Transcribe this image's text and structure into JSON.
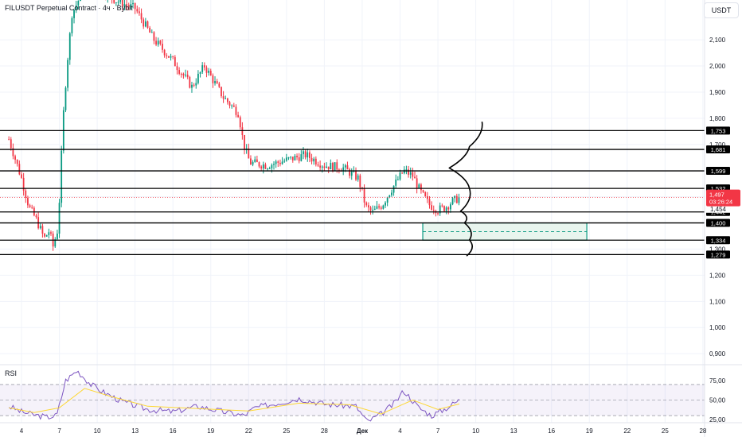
{
  "header": {
    "symbol_title": "FILUSDT Perpetual Contract · 4ч · Bybit",
    "currency_button": "USDT",
    "rsi_title": "RSI"
  },
  "colors": {
    "up": "#089981",
    "down": "#f23645",
    "level_line": "#000000",
    "grid": "#f0f3fa",
    "rsi_line": "#7e57c2",
    "rsi_ma": "#fdd835",
    "rsi_band": "#7e57c2",
    "zone_fill": "#e8f5ee",
    "zone_border": "#089981",
    "current_price": "#f23645"
  },
  "chart_data": [
    {
      "type": "candlestick",
      "price_axis": {
        "ticks": [
          "2,100",
          "2,000",
          "1,900",
          "1,800",
          "1,700",
          "1,600",
          "1,500",
          "1,400",
          "1,300",
          "1,200",
          "1,100",
          "1,000",
          "0,900"
        ],
        "tick_values": [
          2.1,
          2.0,
          1.9,
          1.8,
          1.7,
          1.6,
          1.5,
          1.4,
          1.3,
          1.2,
          1.1,
          1.0,
          0.9
        ]
      },
      "time_axis": {
        "ticks": [
          "4",
          "7",
          "10",
          "13",
          "16",
          "19",
          "22",
          "25",
          "28",
          "Дек",
          "4",
          "7",
          "10",
          "13",
          "16",
          "19",
          "22",
          "25",
          "28"
        ],
        "tick_positions": [
          0,
          3,
          6,
          9,
          12,
          15,
          18,
          21,
          24,
          27,
          30,
          33,
          36,
          39,
          42,
          45,
          48,
          51,
          54
        ],
        "unit": "day offset from 4 Nov"
      },
      "horizontal_levels": [
        {
          "label": "1,753",
          "value": 1.753
        },
        {
          "label": "1,681",
          "value": 1.681
        },
        {
          "label": "1,599",
          "value": 1.599
        },
        {
          "label": "1,532",
          "value": 1.532
        },
        {
          "label": "1,442",
          "value": 1.442
        },
        {
          "label": "1,400",
          "value": 1.4
        },
        {
          "label": "1,334",
          "value": 1.334
        },
        {
          "label": "1,279",
          "value": 1.279
        }
      ],
      "extra_price_label": {
        "label": "1,454",
        "value": 1.454
      },
      "current_price": {
        "label": "1,497",
        "value": 1.497,
        "countdown": "03:26:24"
      },
      "zone": {
        "from_price": 1.334,
        "to_price": 1.4,
        "from_day": 31.8,
        "to_day": 44.8
      },
      "path_sketch": [
        {
          "day": 35.3,
          "price": 1.275
        },
        {
          "day": 35.5,
          "price": 1.335
        },
        {
          "day": 35.1,
          "price": 1.4
        },
        {
          "day": 34.8,
          "price": 1.445
        },
        {
          "day": 35.5,
          "price": 1.532
        },
        {
          "day": 33.9,
          "price": 1.61
        },
        {
          "day": 35.5,
          "price": 1.692
        },
        {
          "day": 36.5,
          "price": 1.785
        }
      ],
      "price_path": [
        {
          "day": -1.0,
          "price": 1.72
        },
        {
          "day": 0.0,
          "price": 1.57
        },
        {
          "day": 0.6,
          "price": 1.46
        },
        {
          "day": 1.2,
          "price": 1.41
        },
        {
          "day": 1.8,
          "price": 1.34
        },
        {
          "day": 2.2,
          "price": 1.37
        },
        {
          "day": 2.5,
          "price": 1.31
        },
        {
          "day": 2.9,
          "price": 1.38
        },
        {
          "day": 3.3,
          "price": 1.8
        },
        {
          "day": 3.6,
          "price": 2.0
        },
        {
          "day": 4.0,
          "price": 2.2
        },
        {
          "day": 4.8,
          "price": 2.28
        },
        {
          "day": 6.0,
          "price": 2.3
        },
        {
          "day": 7.5,
          "price": 2.25
        },
        {
          "day": 9.0,
          "price": 2.22
        },
        {
          "day": 10.5,
          "price": 2.1
        },
        {
          "day": 12.0,
          "price": 2.02
        },
        {
          "day": 13.5,
          "price": 1.92
        },
        {
          "day": 14.5,
          "price": 2.0
        },
        {
          "day": 16.0,
          "price": 1.88
        },
        {
          "day": 17.2,
          "price": 1.82
        },
        {
          "day": 17.6,
          "price": 1.7
        },
        {
          "day": 18.1,
          "price": 1.63
        },
        {
          "day": 19.5,
          "price": 1.62
        },
        {
          "day": 21.0,
          "price": 1.64
        },
        {
          "day": 22.5,
          "price": 1.66
        },
        {
          "day": 24.0,
          "price": 1.62
        },
        {
          "day": 25.5,
          "price": 1.61
        },
        {
          "day": 26.7,
          "price": 1.57
        },
        {
          "day": 27.3,
          "price": 1.46
        },
        {
          "day": 27.8,
          "price": 1.44
        },
        {
          "day": 28.6,
          "price": 1.47
        },
        {
          "day": 29.2,
          "price": 1.52
        },
        {
          "day": 30.3,
          "price": 1.6
        },
        {
          "day": 31.0,
          "price": 1.58
        },
        {
          "day": 31.6,
          "price": 1.52
        },
        {
          "day": 32.3,
          "price": 1.47
        },
        {
          "day": 33.0,
          "price": 1.45
        },
        {
          "day": 33.6,
          "price": 1.46
        },
        {
          "day": 34.1,
          "price": 1.48
        },
        {
          "day": 34.7,
          "price": 1.497
        }
      ],
      "rsi": {
        "title": "RSI",
        "ticks": [
          "75,00",
          "50,00",
          "25,00"
        ],
        "tick_values": [
          75,
          50,
          25
        ],
        "upper_band": 70,
        "lower_band": 30,
        "path": [
          {
            "day": -1.0,
            "value": 42
          },
          {
            "day": 0.0,
            "value": 35
          },
          {
            "day": 1.0,
            "value": 31
          },
          {
            "day": 2.0,
            "value": 28
          },
          {
            "day": 2.8,
            "value": 30
          },
          {
            "day": 3.5,
            "value": 75
          },
          {
            "day": 4.4,
            "value": 88
          },
          {
            "day": 5.5,
            "value": 70
          },
          {
            "day": 6.5,
            "value": 60
          },
          {
            "day": 8.0,
            "value": 48
          },
          {
            "day": 10.0,
            "value": 38
          },
          {
            "day": 12.0,
            "value": 35
          },
          {
            "day": 14.0,
            "value": 42
          },
          {
            "day": 16.0,
            "value": 35
          },
          {
            "day": 17.6,
            "value": 30
          },
          {
            "day": 18.5,
            "value": 40
          },
          {
            "day": 20.0,
            "value": 45
          },
          {
            "day": 22.0,
            "value": 52
          },
          {
            "day": 24.0,
            "value": 45
          },
          {
            "day": 26.5,
            "value": 42
          },
          {
            "day": 27.4,
            "value": 22
          },
          {
            "day": 28.5,
            "value": 32
          },
          {
            "day": 29.5,
            "value": 45
          },
          {
            "day": 30.3,
            "value": 62
          },
          {
            "day": 31.5,
            "value": 40
          },
          {
            "day": 32.5,
            "value": 30
          },
          {
            "day": 33.5,
            "value": 38
          },
          {
            "day": 34.7,
            "value": 50
          }
        ],
        "ma_path": [
          {
            "day": -1.0,
            "value": 40
          },
          {
            "day": 1.0,
            "value": 34
          },
          {
            "day": 3.0,
            "value": 40
          },
          {
            "day": 5.0,
            "value": 65
          },
          {
            "day": 7.0,
            "value": 55
          },
          {
            "day": 10.0,
            "value": 42
          },
          {
            "day": 14.0,
            "value": 39
          },
          {
            "day": 18.0,
            "value": 36
          },
          {
            "day": 22.0,
            "value": 46
          },
          {
            "day": 26.0,
            "value": 44
          },
          {
            "day": 28.5,
            "value": 32
          },
          {
            "day": 31.0,
            "value": 50
          },
          {
            "day": 33.0,
            "value": 38
          },
          {
            "day": 34.7,
            "value": 45
          }
        ]
      }
    }
  ]
}
